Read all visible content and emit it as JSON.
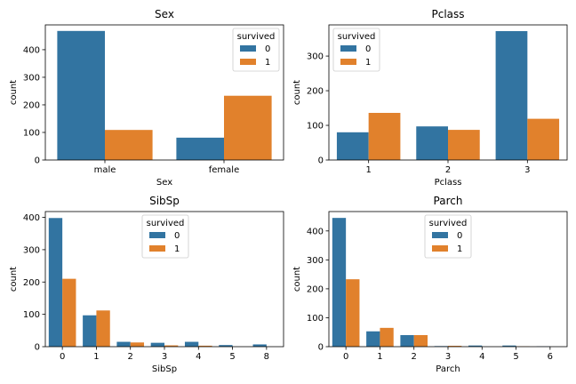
{
  "colors": {
    "survived_0": "#3274a1",
    "survived_1": "#e1812c"
  },
  "chart_data": [
    {
      "type": "bar",
      "title": "Sex",
      "xlabel": "Sex",
      "ylabel": "count",
      "categories": [
        "male",
        "female"
      ],
      "ylim": [
        0,
        490
      ],
      "yticks": [
        0,
        100,
        200,
        300,
        400
      ],
      "legend": {
        "title": "survived",
        "placement": "top-right",
        "entries": [
          "0",
          "1"
        ]
      },
      "series": [
        {
          "name": "0",
          "values": [
            468,
            81
          ]
        },
        {
          "name": "1",
          "values": [
            109,
            233
          ]
        }
      ]
    },
    {
      "type": "bar",
      "title": "Pclass",
      "xlabel": "Pclass",
      "ylabel": "count",
      "categories": [
        "1",
        "2",
        "3"
      ],
      "ylim": [
        0,
        390
      ],
      "yticks": [
        0,
        100,
        200,
        300
      ],
      "legend": {
        "title": "survived",
        "placement": "top-left",
        "entries": [
          "0",
          "1"
        ]
      },
      "series": [
        {
          "name": "0",
          "values": [
            80,
            97,
            372
          ]
        },
        {
          "name": "1",
          "values": [
            136,
            87,
            119
          ]
        }
      ]
    },
    {
      "type": "bar",
      "title": "SibSp",
      "xlabel": "SibSp",
      "ylabel": "count",
      "categories": [
        "0",
        "1",
        "2",
        "3",
        "4",
        "5",
        "8"
      ],
      "ylim": [
        0,
        418
      ],
      "yticks": [
        0,
        100,
        200,
        300,
        400
      ],
      "legend": {
        "title": "survived",
        "placement": "upper-center",
        "entries": [
          "0",
          "1"
        ]
      },
      "series": [
        {
          "name": "0",
          "values": [
            398,
            97,
            15,
            12,
            15,
            5,
            7
          ]
        },
        {
          "name": "1",
          "values": [
            210,
            112,
            13,
            4,
            3,
            0,
            0
          ]
        }
      ]
    },
    {
      "type": "bar",
      "title": "Parch",
      "xlabel": "Parch",
      "ylabel": "count",
      "categories": [
        "0",
        "1",
        "2",
        "3",
        "4",
        "5",
        "6"
      ],
      "ylim": [
        0,
        467
      ],
      "yticks": [
        0,
        100,
        200,
        300,
        400
      ],
      "legend": {
        "title": "survived",
        "placement": "upper-center",
        "entries": [
          "0",
          "1"
        ]
      },
      "series": [
        {
          "name": "0",
          "values": [
            445,
            53,
            40,
            2,
            4,
            4,
            1
          ]
        },
        {
          "name": "1",
          "values": [
            233,
            65,
            40,
            3,
            0,
            1,
            0
          ]
        }
      ]
    }
  ]
}
